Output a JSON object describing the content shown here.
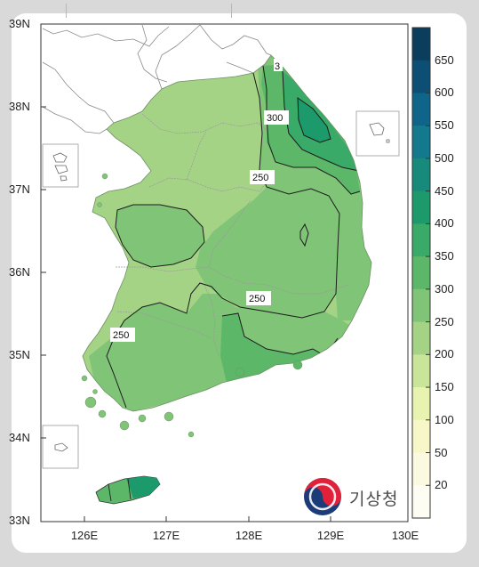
{
  "map": {
    "lat_labels": [
      "39N",
      "38N",
      "37N",
      "36N",
      "35N",
      "34N",
      "33N"
    ],
    "lon_labels": [
      "126E",
      "127E",
      "128E",
      "129E",
      "130E"
    ],
    "contour_labels": [
      "3",
      "300",
      "250",
      "250",
      "250"
    ]
  },
  "colorbar": {
    "ticks": [
      "650",
      "600",
      "550",
      "500",
      "450",
      "400",
      "350",
      "300",
      "250",
      "200",
      "150",
      "100",
      "50",
      "20"
    ],
    "colors": [
      "#0b3d5c",
      "#0d4f74",
      "#0f6589",
      "#137a8e",
      "#178a7c",
      "#1d9a6c",
      "#3aaa68",
      "#5cb868",
      "#80c477",
      "#a4d386",
      "#c9e59a",
      "#e8f3b0",
      "#f8f7c8",
      "#fbfae1",
      "#fdfdf3"
    ]
  },
  "logo": {
    "text": "기상청"
  }
}
